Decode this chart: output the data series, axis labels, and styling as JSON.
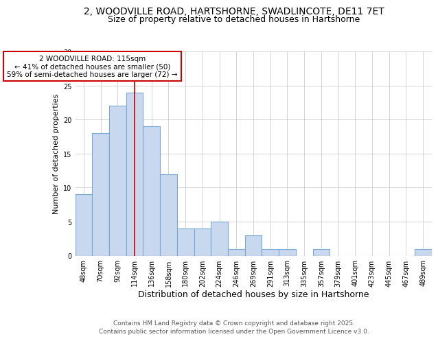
{
  "title_line1": "2, WOODVILLE ROAD, HARTSHORNE, SWADLINCOTE, DE11 7ET",
  "title_line2": "Size of property relative to detached houses in Hartshorne",
  "xlabel": "Distribution of detached houses by size in Hartshorne",
  "ylabel": "Number of detached properties",
  "categories": [
    "48sqm",
    "70sqm",
    "92sqm",
    "114sqm",
    "136sqm",
    "158sqm",
    "180sqm",
    "202sqm",
    "224sqm",
    "246sqm",
    "269sqm",
    "291sqm",
    "313sqm",
    "335sqm",
    "357sqm",
    "379sqm",
    "401sqm",
    "423sqm",
    "445sqm",
    "467sqm",
    "489sqm"
  ],
  "values": [
    9,
    18,
    22,
    24,
    19,
    12,
    4,
    4,
    5,
    1,
    3,
    1,
    1,
    0,
    1,
    0,
    0,
    0,
    0,
    0,
    1
  ],
  "bar_color": "#c8d8ee",
  "bar_edge_color": "#7aaad4",
  "vline_x_index": 3,
  "vline_color": "#cc0000",
  "annotation_text": "2 WOODVILLE ROAD: 115sqm\n← 41% of detached houses are smaller (50)\n59% of semi-detached houses are larger (72) →",
  "annotation_box_color": "white",
  "annotation_box_edge": "#cc0000",
  "ylim": [
    0,
    30
  ],
  "yticks": [
    0,
    5,
    10,
    15,
    20,
    25,
    30
  ],
  "grid_color": "#cccccc",
  "plot_bg_color": "#ffffff",
  "fig_bg_color": "#ffffff",
  "footer_line1": "Contains HM Land Registry data © Crown copyright and database right 2025.",
  "footer_line2": "Contains public sector information licensed under the Open Government Licence v3.0.",
  "title_fontsize": 10,
  "subtitle_fontsize": 9,
  "xlabel_fontsize": 9,
  "ylabel_fontsize": 8,
  "tick_fontsize": 7,
  "annotation_fontsize": 7.5,
  "footer_fontsize": 6.5
}
